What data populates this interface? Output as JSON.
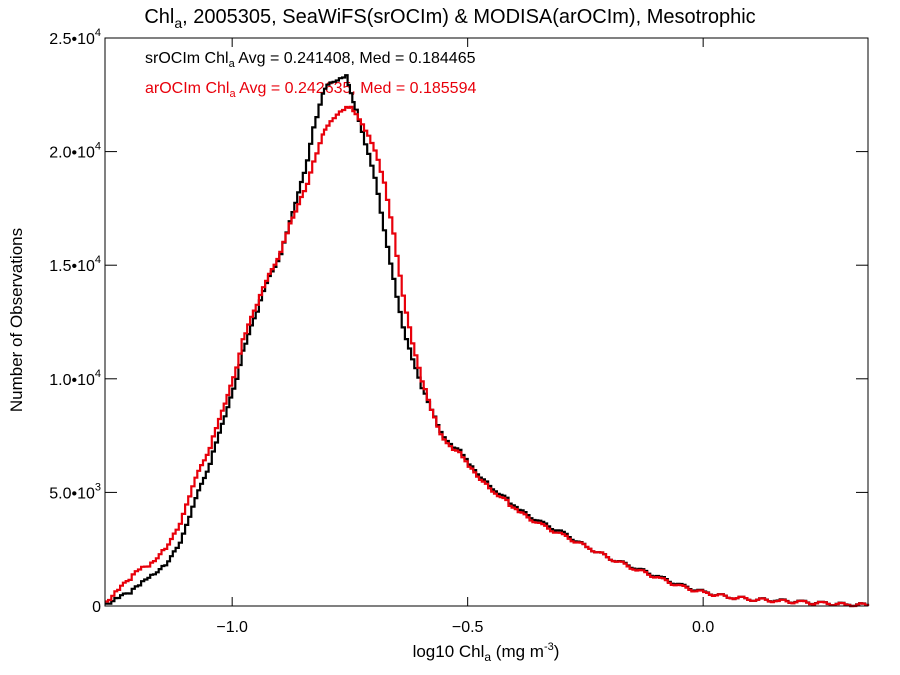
{
  "chart_data": {
    "type": "line",
    "title_main": "Chl",
    "title_sub": "a",
    "title_rest": ", 2005305, SeaWiFS(srOCIm) & MODISA(arOCIm), Mesotrophic",
    "ylabel": "Number of Observations",
    "xlabel_main": "log10 Chl",
    "xlabel_sub": "a",
    "xlabel_rest": " (mg m",
    "xlabel_sup": "-3",
    "xlabel_end": ")",
    "xlim": [
      -1.27,
      0.35
    ],
    "ylim": [
      0,
      25000
    ],
    "x_ticks": [
      {
        "value": -1.0,
        "label": "−1.0"
      },
      {
        "value": -0.5,
        "label": "−0.5"
      },
      {
        "value": 0.0,
        "label": "0.0"
      }
    ],
    "y_ticks": [
      {
        "value": 0,
        "mant": "0",
        "exp": ""
      },
      {
        "value": 5000,
        "mant": "5.0•10",
        "exp": "3"
      },
      {
        "value": 10000,
        "mant": "1.0•10",
        "exp": "4"
      },
      {
        "value": 15000,
        "mant": "1.5•10",
        "exp": "4"
      },
      {
        "value": 20000,
        "mant": "2.0•10",
        "exp": "4"
      },
      {
        "value": 25000,
        "mant": "2.5•10",
        "exp": "4"
      }
    ],
    "x": [
      -1.27,
      -1.25,
      -1.22,
      -1.2,
      -1.18,
      -1.15,
      -1.12,
      -1.1,
      -1.08,
      -1.05,
      -1.03,
      -1.0,
      -0.98,
      -0.95,
      -0.93,
      -0.9,
      -0.88,
      -0.85,
      -0.83,
      -0.81,
      -0.8,
      -0.78,
      -0.76,
      -0.75,
      -0.74,
      -0.72,
      -0.7,
      -0.68,
      -0.66,
      -0.64,
      -0.62,
      -0.6,
      -0.58,
      -0.56,
      -0.54,
      -0.52,
      -0.5,
      -0.47,
      -0.45,
      -0.42,
      -0.4,
      -0.35,
      -0.3,
      -0.25,
      -0.2,
      -0.15,
      -0.1,
      -0.05,
      0.0,
      0.05,
      0.1,
      0.15,
      0.2,
      0.25,
      0.3,
      0.35
    ],
    "series": [
      {
        "name": "srOCIm",
        "color": "#000000",
        "label_main": "srOCIm Chl",
        "label_sub": "a",
        "label_rest": " Avg = 0.241408, Med = 0.184465",
        "values": [
          100,
          300,
          600,
          900,
          1300,
          1700,
          2500,
          3500,
          4700,
          6300,
          7700,
          9500,
          11200,
          13000,
          14200,
          15500,
          17000,
          19000,
          21000,
          22500,
          22900,
          23200,
          23400,
          22600,
          21800,
          20300,
          18900,
          16600,
          14400,
          12200,
          10800,
          9600,
          8700,
          7700,
          7100,
          6800,
          6200,
          5600,
          5200,
          4700,
          4300,
          3700,
          3200,
          2600,
          2100,
          1700,
          1300,
          900,
          600,
          400,
          300,
          250,
          180,
          120,
          70,
          50
        ]
      },
      {
        "name": "arOCIm",
        "color": "#e8000b",
        "label_main": "arOCIm Chl",
        "label_sub": "a",
        "label_rest": " Avg = 0.242635, Med = 0.185594",
        "values": [
          200,
          600,
          1200,
          1600,
          1800,
          2400,
          3300,
          4400,
          5600,
          7000,
          8300,
          10000,
          11700,
          13300,
          14300,
          15600,
          16900,
          18200,
          19500,
          20700,
          21100,
          21700,
          22000,
          22000,
          21600,
          20900,
          20100,
          18700,
          16400,
          13600,
          11500,
          9900,
          8700,
          7600,
          7000,
          6700,
          6100,
          5500,
          5100,
          4600,
          4200,
          3600,
          3100,
          2600,
          2100,
          1650,
          1250,
          850,
          580,
          400,
          300,
          230,
          170,
          110,
          60,
          40
        ]
      }
    ]
  }
}
